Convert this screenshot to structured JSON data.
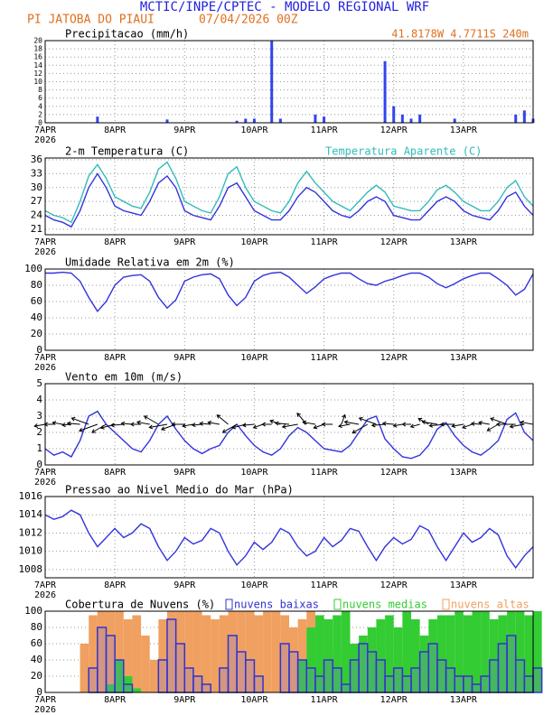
{
  "header": {
    "title": "MCTIC/INPE/CPTEC - MODELO REGIONAL WRF",
    "location": "PI JATOBA DO PIAUI",
    "date": "07/04/2026 00Z"
  },
  "chart_data": [
    {
      "type": "bar",
      "title": "Precipitacao (mm/h)",
      "annotation": "41.8178W 4.7711S 240m",
      "x": [
        0,
        3,
        6,
        9,
        12,
        15,
        18,
        21,
        24,
        27,
        30,
        33,
        36,
        39,
        42,
        45,
        48,
        51,
        54,
        57,
        60,
        63,
        66,
        69,
        72,
        75,
        78,
        81,
        84,
        87,
        90,
        93,
        96,
        99,
        102,
        105,
        108,
        111,
        114,
        117,
        120,
        123,
        126,
        129,
        132,
        135,
        138,
        141,
        144,
        147,
        150,
        153,
        156,
        159,
        162,
        165,
        168
      ],
      "series": [
        {
          "color": "#3344ee",
          "values": [
            0,
            0,
            0,
            0,
            0,
            0,
            1.5,
            0,
            0,
            0,
            0,
            0,
            0,
            0,
            0.8,
            0,
            0,
            0,
            0,
            0,
            0,
            0,
            0.5,
            1,
            1,
            0,
            20,
            1,
            0,
            0,
            0,
            2,
            1.5,
            0,
            0,
            0,
            0,
            0,
            0,
            15,
            4,
            2,
            1,
            2,
            0,
            0,
            0,
            1,
            0,
            0,
            0,
            0,
            0,
            0,
            2,
            3,
            1
          ]
        }
      ],
      "xlim": [
        0,
        168
      ],
      "ylim": [
        0,
        20
      ],
      "yticks": [
        0,
        2,
        4,
        6,
        8,
        10,
        12,
        14,
        16,
        18,
        20
      ],
      "xticks": [
        {
          "value": 0,
          "label": "7APR"
        },
        {
          "value": 24,
          "label": "8APR"
        },
        {
          "value": 48,
          "label": "9APR"
        },
        {
          "value": 72,
          "label": "10APR"
        },
        {
          "value": 96,
          "label": "11APR"
        },
        {
          "value": 120,
          "label": "12APR"
        },
        {
          "value": 144,
          "label": "13APR"
        }
      ],
      "x_year": "2026",
      "grid": true
    },
    {
      "type": "line",
      "x": [
        0,
        3,
        6,
        9,
        12,
        15,
        18,
        21,
        24,
        27,
        30,
        33,
        36,
        39,
        42,
        45,
        48,
        51,
        54,
        57,
        60,
        63,
        66,
        69,
        72,
        75,
        78,
        81,
        84,
        87,
        90,
        93,
        96,
        99,
        102,
        105,
        108,
        111,
        114,
        117,
        120,
        123,
        126,
        129,
        132,
        135,
        138,
        141,
        144,
        147,
        150,
        153,
        156,
        159,
        162,
        165,
        168
      ],
      "series": [
        {
          "name": "2-m Temperatura (C)",
          "color": "#3333dd",
          "values": [
            24,
            23,
            22.5,
            21.5,
            25,
            30,
            33,
            30,
            26,
            25,
            24.5,
            24,
            27,
            31,
            32.5,
            30,
            25,
            24,
            23.5,
            23,
            26,
            30,
            31,
            28,
            25,
            24,
            23,
            23,
            25,
            28,
            30,
            29,
            27,
            25,
            24,
            23.5,
            25,
            27,
            28,
            27,
            24,
            23.5,
            23,
            23,
            25,
            27,
            28,
            27,
            25,
            24,
            23.5,
            23,
            25,
            28,
            29,
            26,
            24
          ]
        },
        {
          "name": "Temperatura Aparente (C)",
          "color": "#33bbbb",
          "values": [
            25,
            24,
            23.5,
            22.5,
            27,
            32.5,
            35,
            32,
            28,
            27,
            26,
            25.5,
            29,
            34,
            35.5,
            32,
            27,
            26,
            25,
            24.5,
            28,
            33,
            34.5,
            30,
            27,
            26,
            25,
            24.5,
            27,
            31,
            33.5,
            31,
            29,
            27,
            26,
            25,
            27,
            29,
            30.5,
            29,
            26,
            25.5,
            25,
            25,
            27,
            29.5,
            30.5,
            29,
            27,
            26,
            25,
            25,
            27,
            30,
            31.5,
            28,
            26
          ]
        }
      ],
      "xlim": [
        0,
        168
      ],
      "ylim": [
        19.8,
        36.4
      ],
      "yticks": [
        21,
        24,
        27,
        30,
        33,
        36
      ],
      "xticks": [
        {
          "value": 0,
          "label": "7APR"
        },
        {
          "value": 24,
          "label": "8APR"
        },
        {
          "value": 48,
          "label": "9APR"
        },
        {
          "value": 72,
          "label": "10APR"
        },
        {
          "value": 96,
          "label": "11APR"
        },
        {
          "value": 120,
          "label": "12APR"
        },
        {
          "value": 144,
          "label": "13APR"
        }
      ],
      "x_year": "2026",
      "grid": true
    },
    {
      "type": "line",
      "title": "Umidade Relativa em 2m (%)",
      "x": [
        0,
        3,
        6,
        9,
        12,
        15,
        18,
        21,
        24,
        27,
        30,
        33,
        36,
        39,
        42,
        45,
        48,
        51,
        54,
        57,
        60,
        63,
        66,
        69,
        72,
        75,
        78,
        81,
        84,
        87,
        90,
        93,
        96,
        99,
        102,
        105,
        108,
        111,
        114,
        117,
        120,
        123,
        126,
        129,
        132,
        135,
        138,
        141,
        144,
        147,
        150,
        153,
        156,
        159,
        162,
        165,
        168
      ],
      "series": [
        {
          "color": "#3333dd",
          "values": [
            95,
            95,
            96,
            95,
            85,
            65,
            48,
            60,
            80,
            90,
            92,
            93,
            85,
            65,
            52,
            62,
            85,
            90,
            93,
            94,
            88,
            68,
            55,
            65,
            85,
            92,
            95,
            96,
            90,
            80,
            70,
            78,
            88,
            92,
            95,
            95,
            88,
            82,
            80,
            85,
            88,
            92,
            95,
            95,
            90,
            82,
            77,
            82,
            88,
            92,
            95,
            95,
            88,
            80,
            68,
            75,
            94
          ]
        }
      ],
      "xlim": [
        0,
        168
      ],
      "ylim": [
        0,
        100
      ],
      "yticks": [
        0,
        20,
        40,
        60,
        80,
        100
      ],
      "xticks": [
        {
          "value": 0,
          "label": "7APR"
        },
        {
          "value": 24,
          "label": "8APR"
        },
        {
          "value": 48,
          "label": "9APR"
        },
        {
          "value": 72,
          "label": "10APR"
        },
        {
          "value": 96,
          "label": "11APR"
        },
        {
          "value": 120,
          "label": "12APR"
        },
        {
          "value": 144,
          "label": "13APR"
        }
      ],
      "x_year": "2026",
      "grid": true
    },
    {
      "type": "line",
      "title": "Vento em 10m (m/s)",
      "x": [
        0,
        3,
        6,
        9,
        12,
        15,
        18,
        21,
        24,
        27,
        30,
        33,
        36,
        39,
        42,
        45,
        48,
        51,
        54,
        57,
        60,
        63,
        66,
        69,
        72,
        75,
        78,
        81,
        84,
        87,
        90,
        93,
        96,
        99,
        102,
        105,
        108,
        111,
        114,
        117,
        120,
        123,
        126,
        129,
        132,
        135,
        138,
        141,
        144,
        147,
        150,
        153,
        156,
        159,
        162,
        165,
        168
      ],
      "series": [
        {
          "color": "#3333dd",
          "values": [
            1,
            0.6,
            0.8,
            0.5,
            1.5,
            3,
            3.3,
            2.5,
            2,
            1.5,
            1,
            0.8,
            1.5,
            2.5,
            3,
            2.2,
            1.5,
            1,
            0.7,
            1,
            1.2,
            2,
            2.5,
            1.8,
            1.2,
            0.8,
            0.6,
            1,
            1.8,
            2.3,
            2,
            1.5,
            1,
            0.9,
            0.8,
            1.2,
            2,
            2.8,
            3,
            1.6,
            1,
            0.5,
            0.4,
            0.6,
            1.2,
            2.2,
            2.6,
            1.8,
            1.2,
            0.8,
            0.6,
            1,
            1.5,
            2.8,
            3.2,
            2,
            1.5
          ]
        }
      ],
      "wind_direction": [
        80,
        90,
        100,
        85,
        95,
        110,
        70,
        60,
        75,
        85,
        95,
        90,
        100,
        120,
        80,
        70,
        90,
        80,
        85,
        95,
        100,
        130,
        60,
        75,
        85,
        70,
        90,
        110,
        95,
        80,
        140,
        100,
        70,
        90,
        200,
        80,
        100,
        60,
        110,
        85,
        95,
        80,
        90,
        75,
        120,
        100,
        85,
        90,
        80,
        70,
        95,
        100,
        60,
        110,
        90,
        80,
        100
      ],
      "xlim": [
        0,
        168
      ],
      "ylim": [
        0,
        5
      ],
      "yticks": [
        0,
        1,
        2,
        3,
        4,
        5
      ],
      "xticks": [
        {
          "value": 0,
          "label": "7APR"
        },
        {
          "value": 24,
          "label": "8APR"
        },
        {
          "value": 48,
          "label": "9APR"
        },
        {
          "value": 72,
          "label": "10APR"
        },
        {
          "value": 96,
          "label": "11APR"
        },
        {
          "value": 120,
          "label": "12APR"
        },
        {
          "value": 144,
          "label": "13APR"
        }
      ],
      "x_year": "2026",
      "grid": true
    },
    {
      "type": "line",
      "title": "Pressao ao Nivel Medio do Mar (hPa)",
      "x": [
        0,
        3,
        6,
        9,
        12,
        15,
        18,
        21,
        24,
        27,
        30,
        33,
        36,
        39,
        42,
        45,
        48,
        51,
        54,
        57,
        60,
        63,
        66,
        69,
        72,
        75,
        78,
        81,
        84,
        87,
        90,
        93,
        96,
        99,
        102,
        105,
        108,
        111,
        114,
        117,
        120,
        123,
        126,
        129,
        132,
        135,
        138,
        141,
        144,
        147,
        150,
        153,
        156,
        159,
        162,
        165,
        168
      ],
      "series": [
        {
          "color": "#3333dd",
          "values": [
            1014,
            1013.5,
            1013.8,
            1014.5,
            1014,
            1012,
            1010.5,
            1011.5,
            1012.5,
            1011.5,
            1012,
            1013,
            1012.5,
            1010.5,
            1009,
            1010,
            1011.5,
            1010.8,
            1011.2,
            1012.5,
            1012,
            1010,
            1008.5,
            1009.5,
            1011,
            1010.2,
            1011,
            1012.5,
            1012,
            1010.5,
            1009.5,
            1010,
            1011.5,
            1010.5,
            1011.2,
            1012.5,
            1012.2,
            1010.5,
            1009,
            1010.5,
            1011.5,
            1010.8,
            1011.3,
            1012.8,
            1012.3,
            1010.5,
            1009,
            1010.5,
            1012,
            1011,
            1011.5,
            1012.5,
            1011.8,
            1009.5,
            1008.2,
            1009.5,
            1010.5
          ]
        }
      ],
      "xlim": [
        0,
        168
      ],
      "ylim": [
        1007.1,
        1016
      ],
      "yticks": [
        1008,
        1010,
        1012,
        1014,
        1016
      ],
      "xticks": [
        {
          "value": 0,
          "label": "7APR"
        },
        {
          "value": 24,
          "label": "8APR"
        },
        {
          "value": 48,
          "label": "9APR"
        },
        {
          "value": 72,
          "label": "10APR"
        },
        {
          "value": 96,
          "label": "11APR"
        },
        {
          "value": 120,
          "label": "12APR"
        },
        {
          "value": 144,
          "label": "13APR"
        }
      ],
      "x_year": "2026",
      "grid": true
    },
    {
      "type": "bar",
      "title": "Cobertura de Nuvens (%)",
      "x": [
        0,
        3,
        6,
        9,
        12,
        15,
        18,
        21,
        24,
        27,
        30,
        33,
        36,
        39,
        42,
        45,
        48,
        51,
        54,
        57,
        60,
        63,
        66,
        69,
        72,
        75,
        78,
        81,
        84,
        87,
        90,
        93,
        96,
        99,
        102,
        105,
        108,
        111,
        114,
        117,
        120,
        123,
        126,
        129,
        132,
        135,
        138,
        141,
        144,
        147,
        150,
        153,
        156,
        159,
        162,
        165,
        168
      ],
      "series": [
        {
          "name": "nuvens altas",
          "color": "#f0a060",
          "values": [
            0,
            0,
            0,
            0,
            60,
            95,
            100,
            100,
            100,
            90,
            95,
            70,
            40,
            90,
            100,
            100,
            100,
            100,
            95,
            90,
            95,
            100,
            100,
            100,
            95,
            100,
            100,
            95,
            80,
            90,
            100,
            85,
            60,
            50,
            40,
            60,
            30,
            40,
            20,
            30,
            40,
            30,
            20,
            40,
            30,
            20,
            20,
            30,
            20,
            10,
            20,
            40,
            30,
            20,
            10,
            20,
            10
          ]
        },
        {
          "name": "nuvens medias",
          "color": "#33cc33",
          "values": [
            0,
            0,
            0,
            0,
            0,
            0,
            0,
            10,
            40,
            20,
            5,
            0,
            0,
            0,
            0,
            0,
            0,
            0,
            0,
            0,
            0,
            0,
            0,
            0,
            0,
            0,
            0,
            0,
            0,
            40,
            80,
            95,
            90,
            95,
            100,
            60,
            70,
            80,
            90,
            95,
            80,
            100,
            90,
            70,
            90,
            95,
            95,
            100,
            95,
            100,
            100,
            90,
            95,
            100,
            100,
            95,
            100
          ]
        },
        {
          "name": "nuvens baixas",
          "color": "#3333cc",
          "values": [
            0,
            0,
            0,
            0,
            0,
            30,
            80,
            70,
            40,
            10,
            0,
            0,
            0,
            40,
            90,
            60,
            30,
            20,
            10,
            0,
            30,
            70,
            50,
            40,
            20,
            0,
            0,
            60,
            50,
            40,
            30,
            20,
            40,
            30,
            10,
            40,
            60,
            50,
            40,
            20,
            30,
            20,
            30,
            50,
            60,
            40,
            30,
            20,
            20,
            10,
            20,
            40,
            60,
            70,
            40,
            20,
            30
          ]
        }
      ],
      "xlim": [
        0,
        168
      ],
      "ylim": [
        0,
        100
      ],
      "yticks": [
        0,
        20,
        40,
        60,
        80,
        100
      ],
      "xticks": [
        {
          "value": 0,
          "label": "7APR"
        },
        {
          "value": 24,
          "label": "8APR"
        },
        {
          "value": 48,
          "label": "9APR"
        },
        {
          "value": 72,
          "label": "10APR"
        },
        {
          "value": 96,
          "label": "11APR"
        },
        {
          "value": 120,
          "label": "12APR"
        },
        {
          "value": 144,
          "label": "13APR"
        }
      ],
      "x_year": "2026",
      "grid": true
    }
  ]
}
